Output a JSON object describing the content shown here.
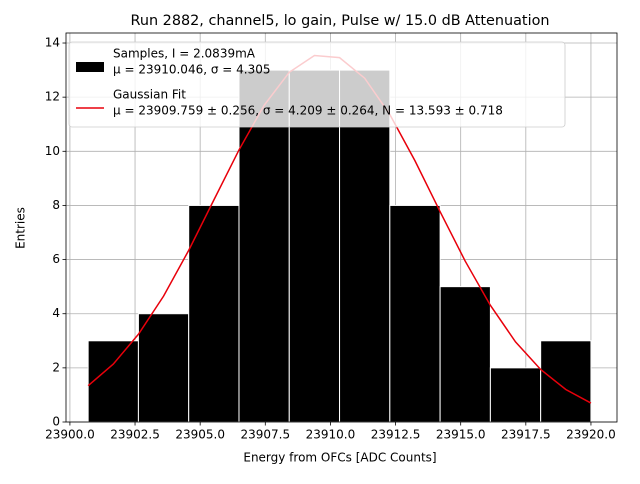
{
  "chart_data": {
    "type": "histogram",
    "title": "Run 2882, channel5, lo gain, Pulse w/ 15.0 dB Attenuation",
    "xlabel": "Energy from OFCs [ADC Counts]",
    "ylabel": "Entries",
    "bins": [
      23900.7,
      23902.63,
      23904.56,
      23906.49,
      23908.42,
      23910.35,
      23912.28,
      23914.21,
      23916.14,
      23918.07,
      23920.0
    ],
    "series": [
      {
        "name": "Samples, I = 2.0839mA",
        "stats": "μ = 23910.046, σ = 4.305",
        "type": "histogram",
        "color": "#000000",
        "values": [
          3,
          4,
          8,
          13,
          13,
          13,
          8,
          5,
          2,
          3
        ]
      },
      {
        "name": "Gaussian Fit",
        "stats": "μ = 23909.759 ± 0.256, σ = 4.209 ± 0.264, N = 13.593 ± 0.718",
        "type": "line",
        "color": "#e8000b",
        "x": [
          23900.7,
          23901.665,
          23902.63,
          23903.595,
          23904.56,
          23905.525,
          23906.49,
          23907.455,
          23908.42,
          23909.385,
          23910.35,
          23911.315,
          23912.28,
          23913.245,
          23914.21,
          23915.175,
          23916.14,
          23917.105,
          23918.07,
          23919.035,
          23920.0
        ],
        "values": [
          1.34,
          2.14,
          3.24,
          4.65,
          6.34,
          8.2,
          10.05,
          11.7,
          12.92,
          13.54,
          13.46,
          12.7,
          11.36,
          9.65,
          7.77,
          5.94,
          4.31,
          2.96,
          1.94,
          1.2,
          0.7
        ]
      }
    ],
    "xlim": [
      23899.85,
      23921.0
    ],
    "xticks": [
      {
        "value": 23900,
        "label": "23900.0"
      },
      {
        "value": 23902.5,
        "label": "23902.5"
      },
      {
        "value": 23905,
        "label": "23905.0"
      },
      {
        "value": 23907.5,
        "label": "23907.5"
      },
      {
        "value": 23910,
        "label": "23910.0"
      },
      {
        "value": 23912.5,
        "label": "23912.5"
      },
      {
        "value": 23915,
        "label": "23915.0"
      },
      {
        "value": 23917.5,
        "label": "23917.5"
      },
      {
        "value": 23920,
        "label": "23920.0"
      }
    ],
    "ylim": [
      0,
      14.37
    ],
    "yticks": [
      0,
      2,
      4,
      6,
      8,
      10,
      12,
      14
    ],
    "grid": true,
    "legend": "upper left"
  }
}
